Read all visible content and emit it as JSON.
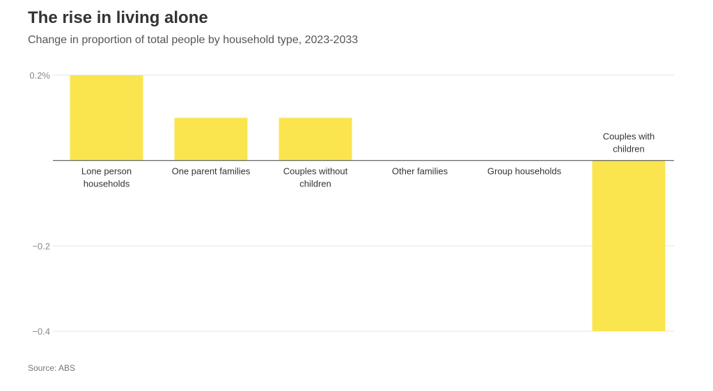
{
  "header": {
    "title": "The rise in living alone",
    "subtitle": "Change in proportion of total people by household type, 2023-2033"
  },
  "footer": {
    "source": "Source: ABS"
  },
  "chart_data": {
    "type": "bar",
    "title": "The rise in living alone",
    "subtitle": "Change in proportion of total people by household type, 2023-2033",
    "xlabel": "",
    "ylabel": "",
    "categories": [
      [
        "Lone person",
        "households"
      ],
      [
        "One parent families"
      ],
      [
        "Couples without",
        "children"
      ],
      [
        "Other families"
      ],
      [
        "Group households"
      ],
      [
        "Couples with",
        "children"
      ]
    ],
    "values": [
      0.2,
      0.1,
      0.1,
      0,
      0,
      -0.4
    ],
    "ylim": [
      -0.4,
      0.2
    ],
    "yticks": [
      0.2,
      -0.2,
      -0.4
    ],
    "ytick_labels": [
      "0.2%",
      "−0.2",
      "−0.4"
    ],
    "grid": true,
    "bar_color": "#fbe54f",
    "zero_line_color": "#555555",
    "grid_color": "#e6e6e6"
  }
}
